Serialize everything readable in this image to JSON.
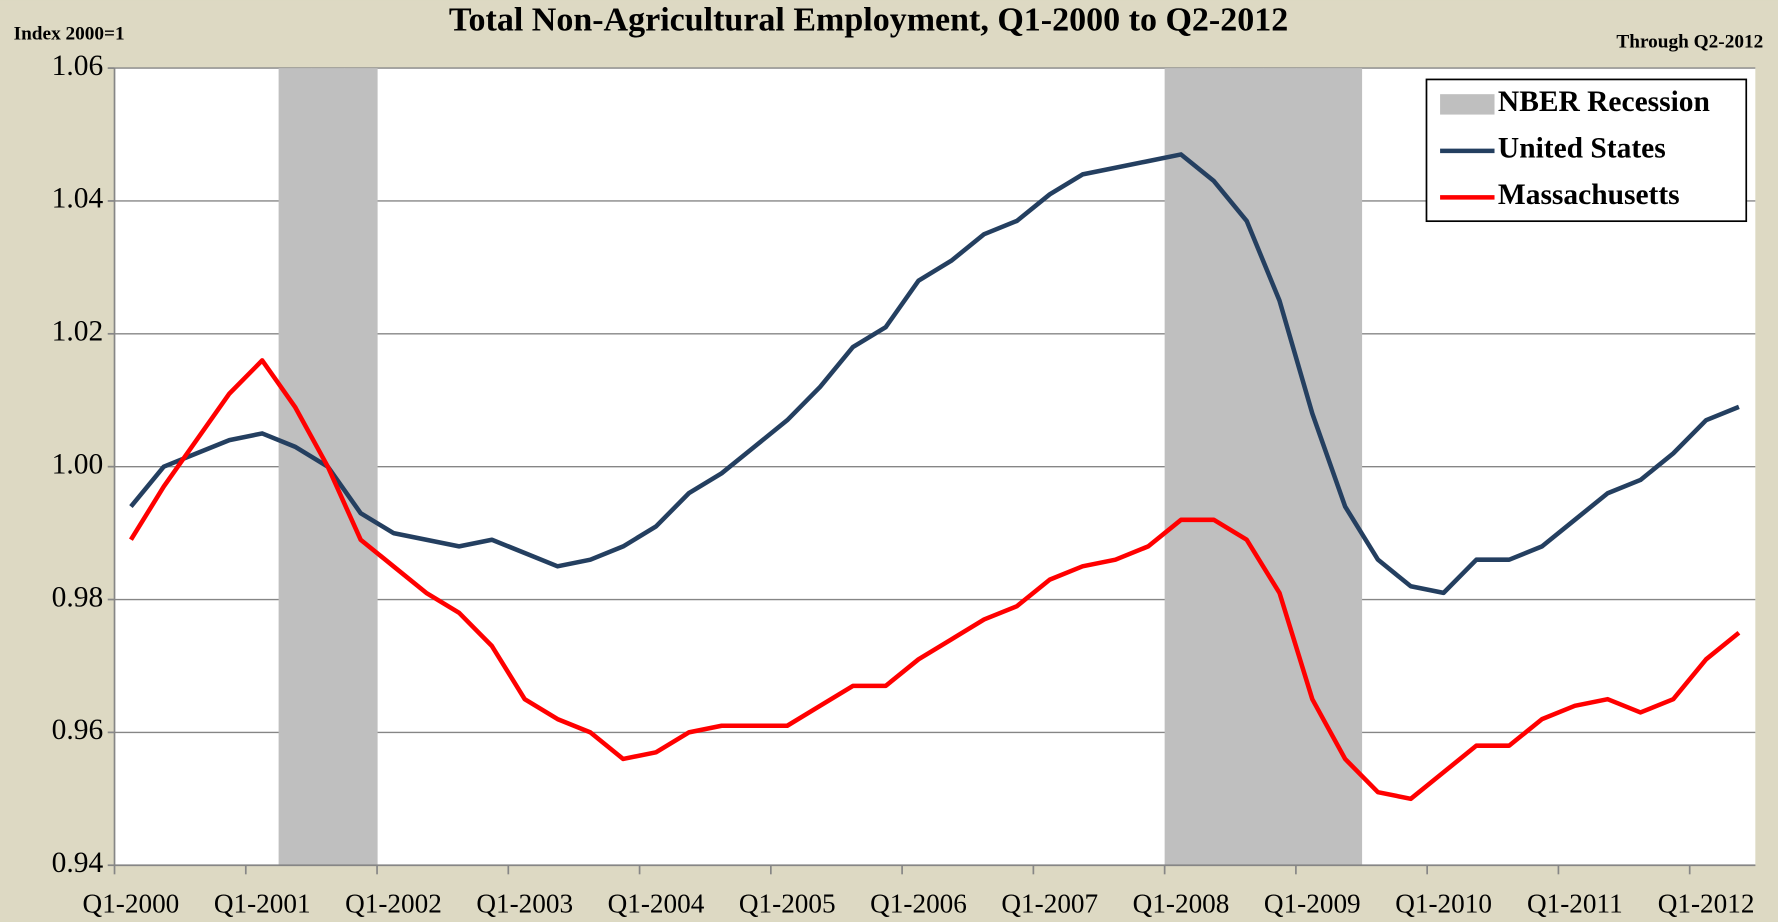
{
  "chart_data": {
    "type": "line",
    "title": "Total Non-Agricultural Employment, Q1-2000 to Q2-2012",
    "y_label": "Index 2000=1",
    "annotation": "Through Q2-2012",
    "categories": [
      "Q1-2000",
      null,
      null,
      null,
      "Q1-2001",
      null,
      null,
      null,
      "Q1-2002",
      null,
      null,
      null,
      "Q1-2003",
      null,
      null,
      null,
      "Q1-2004",
      null,
      null,
      null,
      "Q1-2005",
      null,
      null,
      null,
      "Q1-2006",
      null,
      null,
      null,
      "Q1-2007",
      null,
      null,
      null,
      "Q1-2008",
      null,
      null,
      null,
      "Q1-2009",
      null,
      null,
      null,
      "Q1-2010",
      null,
      null,
      null,
      "Q1-2011",
      null,
      null,
      null,
      "Q1-2012",
      null
    ],
    "series": [
      {
        "name": "NBER Recession",
        "type": "bar",
        "color": "#bfbfbf",
        "values": [
          null,
          null,
          null,
          null,
          null,
          1.06,
          1.06,
          1.06,
          null,
          null,
          null,
          null,
          null,
          null,
          null,
          null,
          null,
          null,
          null,
          null,
          null,
          null,
          null,
          null,
          null,
          null,
          null,
          null,
          null,
          null,
          null,
          null,
          1.06,
          1.06,
          1.06,
          1.06,
          1.06,
          1.06,
          null,
          null,
          null,
          null,
          null,
          null,
          null,
          null,
          null,
          null,
          null,
          null
        ]
      },
      {
        "name": "United States",
        "type": "line",
        "color": "#243f60",
        "values": [
          0.994,
          1.0,
          1.002,
          1.004,
          1.005,
          1.003,
          1.0,
          0.993,
          0.99,
          0.989,
          0.988,
          0.989,
          0.987,
          0.985,
          0.986,
          0.988,
          0.991,
          0.996,
          0.999,
          1.003,
          1.007,
          1.012,
          1.018,
          1.021,
          1.028,
          1.031,
          1.035,
          1.037,
          1.041,
          1.044,
          1.045,
          1.046,
          1.047,
          1.043,
          1.037,
          1.025,
          1.008,
          0.994,
          0.986,
          0.982,
          0.981,
          0.986,
          0.986,
          0.988,
          0.992,
          0.996,
          0.998,
          1.002,
          1.007,
          1.009
        ]
      },
      {
        "name": "Massachusetts",
        "type": "line",
        "color": "#ff0000",
        "values": [
          0.989,
          0.997,
          1.004,
          1.011,
          1.016,
          1.009,
          1.0,
          0.989,
          0.985,
          0.981,
          0.978,
          0.973,
          0.965,
          0.962,
          0.96,
          0.956,
          0.957,
          0.96,
          0.961,
          0.961,
          0.961,
          0.964,
          0.967,
          0.967,
          0.971,
          0.974,
          0.977,
          0.979,
          0.983,
          0.985,
          0.986,
          0.988,
          0.992,
          0.992,
          0.989,
          0.981,
          0.965,
          0.956,
          0.951,
          0.95,
          0.954,
          0.958,
          0.958,
          0.962,
          0.964,
          0.965,
          0.963,
          0.965,
          0.971,
          0.975
        ]
      }
    ],
    "ylim": [
      0.94,
      1.06
    ],
    "yticks": [
      0.94,
      0.96,
      0.98,
      {
        "value": 1,
        "label": "1.00"
      },
      1.02,
      1.04,
      1.06
    ],
    "grid": true,
    "legend": "upper right"
  }
}
